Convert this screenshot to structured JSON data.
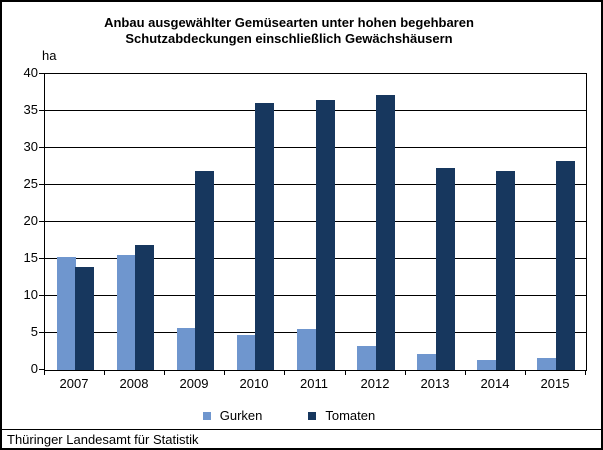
{
  "title_lines": [
    "Anbau ausgewählter Gemüsearten unter hohen begehbaren",
    "Schutzabdeckungen einschließlich Gewächshäusern"
  ],
  "chart_data": {
    "type": "bar",
    "title": "Anbau ausgewählter Gemüsearten unter hohen begehbaren Schutzabdeckungen einschließlich Gewächshäusern",
    "unit_label": "ha",
    "categories": [
      "2007",
      "2008",
      "2009",
      "2010",
      "2011",
      "2012",
      "2013",
      "2014",
      "2015"
    ],
    "series": [
      {
        "name": "Gurken",
        "color": "#6f96ce",
        "values": [
          15.3,
          15.6,
          5.7,
          4.7,
          5.5,
          3.3,
          2.1,
          1.3,
          1.6
        ]
      },
      {
        "name": "Tomaten",
        "color": "#17375e",
        "values": [
          13.9,
          16.9,
          26.9,
          36.1,
          36.5,
          37.2,
          27.3,
          26.9,
          28.2
        ]
      }
    ],
    "ylim": [
      0,
      40
    ],
    "yticks": [
      0,
      5,
      10,
      15,
      20,
      25,
      30,
      35,
      40
    ],
    "grid": true,
    "legend_position": "bottom",
    "axis_color": "#000000",
    "background_color": "#ffffff"
  },
  "footer": {
    "source": "Thüringer Landesamt für Statistik"
  }
}
